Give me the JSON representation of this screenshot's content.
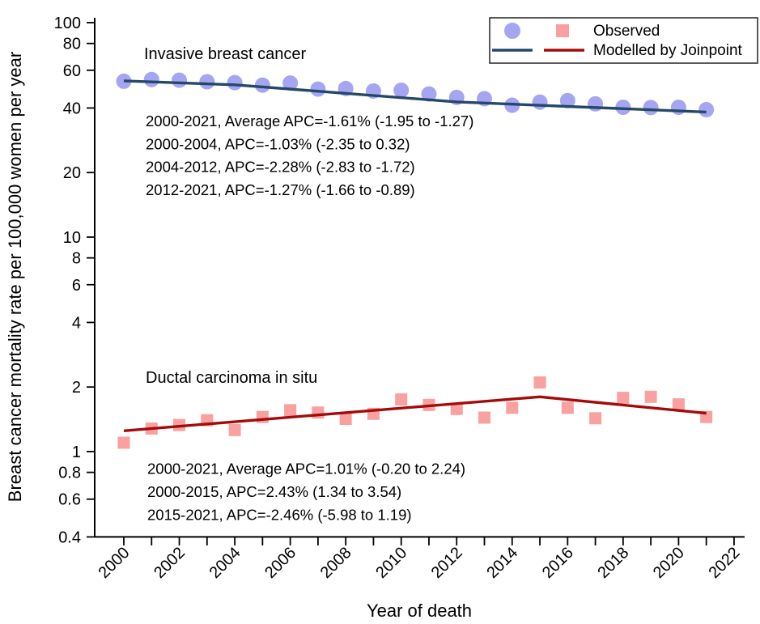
{
  "chart_data": {
    "type": "scatter",
    "title": "",
    "xlabel": "Year of death",
    "ylabel": "Breast cancer mortality rate per 100,000 women per year",
    "y_scale": "log",
    "ylim": [
      0.4,
      100
    ],
    "xlim": [
      2000,
      2022
    ],
    "grid": "off",
    "legend_position": "top-right",
    "y_ticks": [
      100,
      80,
      60,
      40,
      20,
      10,
      8,
      6,
      4,
      2,
      1,
      0.8,
      0.6,
      0.4
    ],
    "x_tick_years": [
      2000,
      2001,
      2002,
      2003,
      2004,
      2005,
      2006,
      2007,
      2008,
      2009,
      2010,
      2011,
      2012,
      2013,
      2014,
      2015,
      2016,
      2017,
      2018,
      2019,
      2020,
      2021,
      2022
    ],
    "x_tick_labels": [
      2000,
      2002,
      2004,
      2006,
      2008,
      2010,
      2012,
      2014,
      2016,
      2018,
      2020,
      2022
    ],
    "x": [
      2000,
      2001,
      2002,
      2003,
      2004,
      2005,
      2006,
      2007,
      2008,
      2009,
      2010,
      2011,
      2012,
      2013,
      2014,
      2015,
      2016,
      2017,
      2018,
      2019,
      2020,
      2021
    ],
    "series": [
      {
        "key": "invasive-observed",
        "name": "Invasive breast cancer (observed)",
        "type": "scatter",
        "marker": "circle",
        "color": "#a5a5f1",
        "values": [
          53.3,
          54.3,
          53.9,
          53.0,
          52.5,
          51.1,
          52.3,
          49.0,
          49.3,
          48.0,
          48.4,
          46.5,
          44.8,
          44.2,
          41.2,
          42.6,
          43.3,
          41.8,
          40.3,
          40.2,
          40.3,
          39.3
        ]
      },
      {
        "key": "invasive-model",
        "name": "Invasive breast cancer (modelled by Joinpoint)",
        "type": "line",
        "color": "#24486a",
        "points": [
          [
            2000,
            53.5
          ],
          [
            2004,
            51.3
          ],
          [
            2012,
            42.7
          ],
          [
            2021,
            38.3
          ]
        ]
      },
      {
        "key": "dcis-observed",
        "name": "Ductal carcinoma in situ (observed)",
        "type": "scatter",
        "marker": "square",
        "color": "#f9a0a0",
        "values": [
          1.1,
          1.28,
          1.33,
          1.4,
          1.26,
          1.45,
          1.56,
          1.52,
          1.42,
          1.5,
          1.75,
          1.65,
          1.58,
          1.44,
          1.6,
          2.1,
          1.6,
          1.43,
          1.78,
          1.8,
          1.66,
          1.45
        ]
      },
      {
        "key": "dcis-model",
        "name": "Ductal carcinoma in situ (modelled by Joinpoint)",
        "type": "line",
        "color": "#a30b0b",
        "points": [
          [
            2000,
            1.25
          ],
          [
            2015,
            1.8
          ],
          [
            2021,
            1.51
          ]
        ]
      }
    ],
    "annotations": {
      "invasive_label": "Invasive breast cancer",
      "invasive_apc": [
        "2000-2021, Average APC=-1.61% (-1.95 to -1.27)",
        "2000-2004, APC=-1.03% (-2.35 to 0.32)",
        "2004-2012, APC=-2.28% (-2.83 to -1.72)",
        "2012-2021, APC=-1.27% (-1.66 to -0.89)"
      ],
      "dcis_label": "Ductal carcinoma in situ",
      "dcis_apc": [
        "2000-2021, Average APC=1.01% (-0.20 to 2.24)",
        "2000-2015, APC=2.43% (1.34 to 3.54)",
        "2015-2021, APC=-2.46% (-5.98 to 1.19)"
      ]
    },
    "legend": {
      "observed_label": "Observed",
      "modelled_label": "Modelled by Joinpoint"
    },
    "colors": {
      "observed_invasive": "#a5a5f1",
      "observed_dcis": "#f9a0a0",
      "modelled_invasive": "#24486a",
      "modelled_dcis": "#a30b0b"
    }
  }
}
